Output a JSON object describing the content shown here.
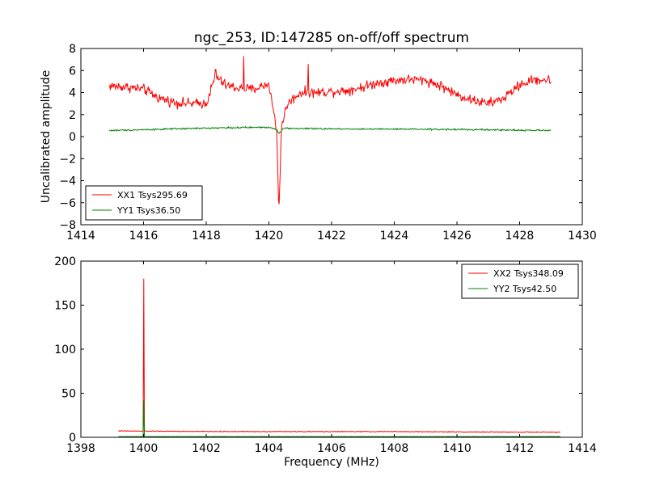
{
  "colors": {
    "xx": "#ff0000",
    "yy": "#008000",
    "axes": "#000000",
    "background": "#ffffff"
  },
  "chart_data": [
    {
      "type": "line",
      "title": "ngc_253, ID:147285 on-off/off spectrum",
      "xlabel": "",
      "ylabel": "Uncalibrated amplitude",
      "xlim": [
        1414,
        1430
      ],
      "ylim": [
        -8,
        8
      ],
      "xticks": [
        1414,
        1416,
        1418,
        1420,
        1422,
        1424,
        1426,
        1428,
        1430
      ],
      "yticks": [
        -8,
        -6,
        -4,
        -2,
        0,
        2,
        4,
        6,
        8
      ],
      "legend_position": "bottom-left",
      "series": [
        {
          "name": "XX1 Tsys295.69",
          "color": "#ff0000",
          "x_range": [
            1414.9,
            1429.0
          ],
          "points": 700,
          "noise": 0.45,
          "baseline": [
            [
              1414.9,
              4.6
            ],
            [
              1415.5,
              4.5
            ],
            [
              1416.0,
              4.3
            ],
            [
              1416.5,
              3.5
            ],
            [
              1417.0,
              3.1
            ],
            [
              1417.5,
              3.0
            ],
            [
              1418.0,
              3.0
            ],
            [
              1418.3,
              5.5
            ],
            [
              1418.6,
              4.7
            ],
            [
              1419.0,
              4.4
            ],
            [
              1419.5,
              4.3
            ],
            [
              1420.0,
              4.8
            ],
            [
              1420.25,
              0.5
            ],
            [
              1420.32,
              -7.0
            ],
            [
              1420.4,
              1.0
            ],
            [
              1420.6,
              3.0
            ],
            [
              1421.0,
              4.0
            ],
            [
              1421.5,
              4.0
            ],
            [
              1422.0,
              4.1
            ],
            [
              1422.5,
              4.2
            ],
            [
              1423.0,
              4.5
            ],
            [
              1423.5,
              4.9
            ],
            [
              1424.0,
              5.1
            ],
            [
              1424.5,
              5.2
            ],
            [
              1425.0,
              5.1
            ],
            [
              1425.5,
              4.6
            ],
            [
              1426.0,
              3.8
            ],
            [
              1426.5,
              3.3
            ],
            [
              1427.0,
              3.0
            ],
            [
              1427.5,
              3.5
            ],
            [
              1428.0,
              4.7
            ],
            [
              1428.5,
              5.2
            ],
            [
              1429.0,
              5.1
            ]
          ],
          "spikes": [
            [
              1418.3,
              6.1
            ],
            [
              1419.2,
              7.3
            ],
            [
              1421.25,
              6.6
            ]
          ]
        },
        {
          "name": "YY1 Tsys36.50",
          "color": "#008000",
          "x_range": [
            1414.9,
            1429.0
          ],
          "points": 700,
          "noise": 0.07,
          "baseline": [
            [
              1414.9,
              0.55
            ],
            [
              1417.0,
              0.7
            ],
            [
              1418.5,
              0.8
            ],
            [
              1420.0,
              0.85
            ],
            [
              1420.22,
              0.7
            ],
            [
              1420.32,
              0.3
            ],
            [
              1420.45,
              0.75
            ],
            [
              1422.0,
              0.7
            ],
            [
              1426.0,
              0.65
            ],
            [
              1429.0,
              0.55
            ]
          ],
          "spikes": []
        }
      ]
    },
    {
      "type": "line",
      "title": "",
      "xlabel": "Frequency (MHz)",
      "ylabel": "",
      "xlim": [
        1398,
        1414
      ],
      "ylim": [
        0,
        200
      ],
      "xticks": [
        1398,
        1400,
        1402,
        1404,
        1406,
        1408,
        1410,
        1412,
        1414
      ],
      "yticks": [
        0,
        50,
        100,
        150,
        200
      ],
      "legend_position": "top-right",
      "series": [
        {
          "name": "XX2 Tsys348.09",
          "color": "#ff0000",
          "x_range": [
            1399.2,
            1413.3
          ],
          "points": 700,
          "noise": 0.45,
          "baseline": [
            [
              1399.2,
              7.2
            ],
            [
              1402.0,
              6.6
            ],
            [
              1405.0,
              6.5
            ],
            [
              1408.0,
              6.5
            ],
            [
              1411.0,
              6.0
            ],
            [
              1413.3,
              5.8
            ]
          ],
          "spikes": [
            [
              1400.0,
              180
            ]
          ]
        },
        {
          "name": "YY2 Tsys42.50",
          "color": "#008000",
          "x_range": [
            1399.2,
            1413.3
          ],
          "points": 700,
          "noise": 0.12,
          "baseline": [
            [
              1399.2,
              0.8
            ],
            [
              1413.3,
              0.8
            ]
          ],
          "spikes": [
            [
              1400.0,
              42
            ]
          ]
        }
      ]
    }
  ]
}
